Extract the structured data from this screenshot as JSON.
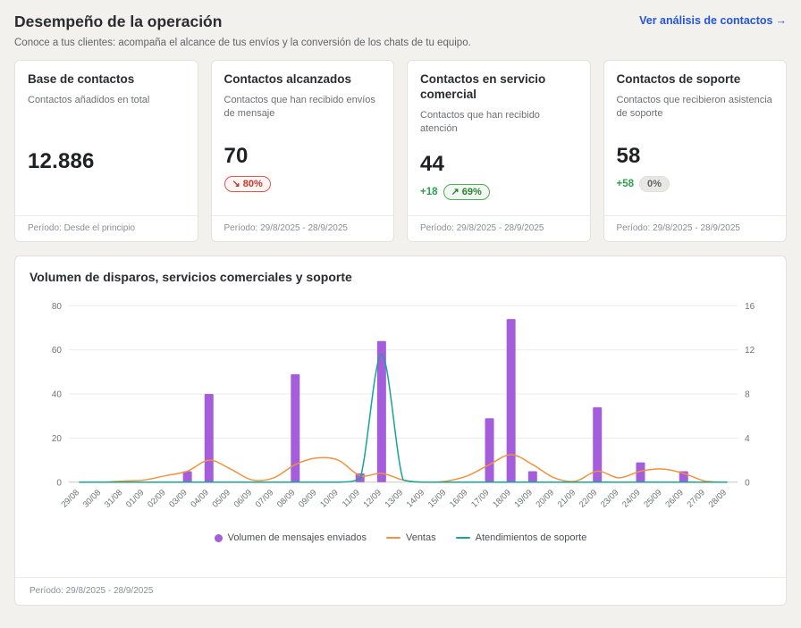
{
  "header": {
    "title": "Desempeño de la operación",
    "subtitle": "Conoce a tus clientes: acompaña el alcance de tus envíos y la conversión de los chats de tu equipo.",
    "link_label": "Ver análisis de contactos"
  },
  "icons": {
    "arrow_right": "→",
    "trend_down": "↘",
    "trend_up": "↗"
  },
  "cards": [
    {
      "title": "Base de contactos",
      "description": "Contactos añadidos en total",
      "value": "12.886",
      "period": "Período: Desde el principio"
    },
    {
      "title": "Contactos alcanzados",
      "description": "Contactos que han recibido envíos de mensaje",
      "value": "70",
      "badge_value": "80%",
      "badge_trend": "down",
      "period": "Período: 29/8/2025 - 28/9/2025"
    },
    {
      "title": "Contactos en servicio comercial",
      "description": "Contactos que han recibido atención",
      "value": "44",
      "delta": "+18",
      "badge_value": "69%",
      "badge_trend": "up",
      "period": "Período: 29/8/2025 - 28/9/2025"
    },
    {
      "title": "Contactos de soporte",
      "description": "Contactos que recibieron asistencia de soporte",
      "value": "58",
      "delta": "+58",
      "badge_value": "0%",
      "badge_trend": "neutral",
      "period": "Período: 29/8/2025 - 28/9/2025"
    }
  ],
  "chart_card": {
    "title": "Volumen de disparos, servicios comerciales y soporte",
    "period": "Período: 29/8/2025 - 28/9/2025"
  },
  "chart_data": {
    "type": "bar",
    "title": "Volumen de disparos, servicios comerciales y soporte",
    "categories": [
      "29/08",
      "30/08",
      "31/08",
      "01/09",
      "02/09",
      "03/09",
      "04/09",
      "05/09",
      "06/09",
      "07/09",
      "08/09",
      "09/09",
      "10/09",
      "11/09",
      "12/09",
      "13/09",
      "14/09",
      "15/09",
      "16/09",
      "17/09",
      "18/09",
      "19/09",
      "20/09",
      "21/09",
      "22/09",
      "23/09",
      "24/09",
      "25/09",
      "26/09",
      "27/09",
      "28/09"
    ],
    "series": [
      {
        "name": "Volumen de mensajes enviados",
        "type": "bar",
        "axis": "left",
        "color": "#a45ddb",
        "values": [
          0,
          0,
          0,
          0,
          0,
          5,
          40,
          0,
          0,
          0,
          49,
          0,
          0,
          4,
          64,
          0,
          0,
          0,
          0,
          29,
          74,
          5,
          0,
          0,
          34,
          0,
          9,
          0,
          5,
          0,
          0
        ]
      },
      {
        "name": "Ventas",
        "type": "line",
        "axis": "right",
        "color": "#f0923e",
        "values": [
          0,
          0,
          0.1,
          0.2,
          0.6,
          1,
          2,
          1.2,
          0.2,
          0.4,
          1.6,
          2.2,
          2,
          0.6,
          0.8,
          0.2,
          0,
          0.1,
          0.6,
          1.6,
          2.5,
          1.6,
          0.4,
          0.1,
          1,
          0.4,
          1,
          1.2,
          0.8,
          0.1,
          0
        ]
      },
      {
        "name": "Atendimientos de soporte",
        "type": "line",
        "axis": "right",
        "color": "#17a398",
        "values": [
          0,
          0,
          0,
          0,
          0,
          0,
          0,
          0,
          0,
          0,
          0,
          0,
          0,
          0.3,
          11.6,
          0.2,
          0,
          0,
          0,
          0,
          0,
          0,
          0,
          0,
          0,
          0,
          0,
          0,
          0,
          0,
          0
        ]
      }
    ],
    "left_axis": {
      "min": 0,
      "max": 80,
      "ticks": [
        0,
        20,
        40,
        60,
        80
      ]
    },
    "right_axis": {
      "min": 0,
      "max": 16,
      "ticks": [
        0,
        4,
        8,
        12,
        16
      ]
    },
    "grid": true,
    "legend_position": "bottom"
  }
}
